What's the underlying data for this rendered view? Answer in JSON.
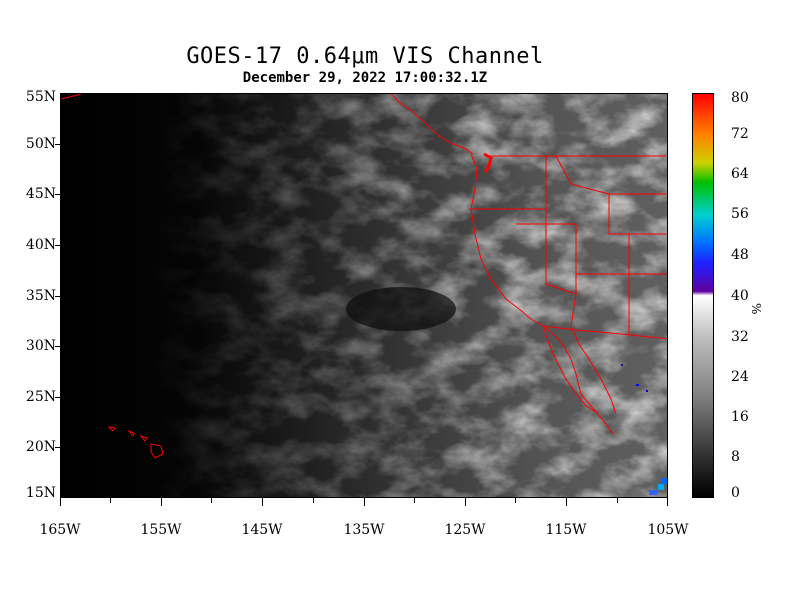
{
  "title": "GOES-17  0.64μm VIS Channel",
  "subtitle": "December 29, 2022 17:00:32.1Z",
  "lat_labels": [
    "55N",
    "50N",
    "45N",
    "40N",
    "35N",
    "30N",
    "25N",
    "20N",
    "15N"
  ],
  "lon_labels": [
    "165W",
    "155W",
    "145W",
    "135W",
    "125W",
    "115W",
    "105W"
  ],
  "colorbar": {
    "labels": [
      "80",
      "72",
      "64",
      "56",
      "48",
      "40",
      "32",
      "24",
      "16",
      "8",
      "0"
    ],
    "unit": "%"
  },
  "colors": {
    "boundaries": "#ff0000",
    "background": "#000000"
  }
}
